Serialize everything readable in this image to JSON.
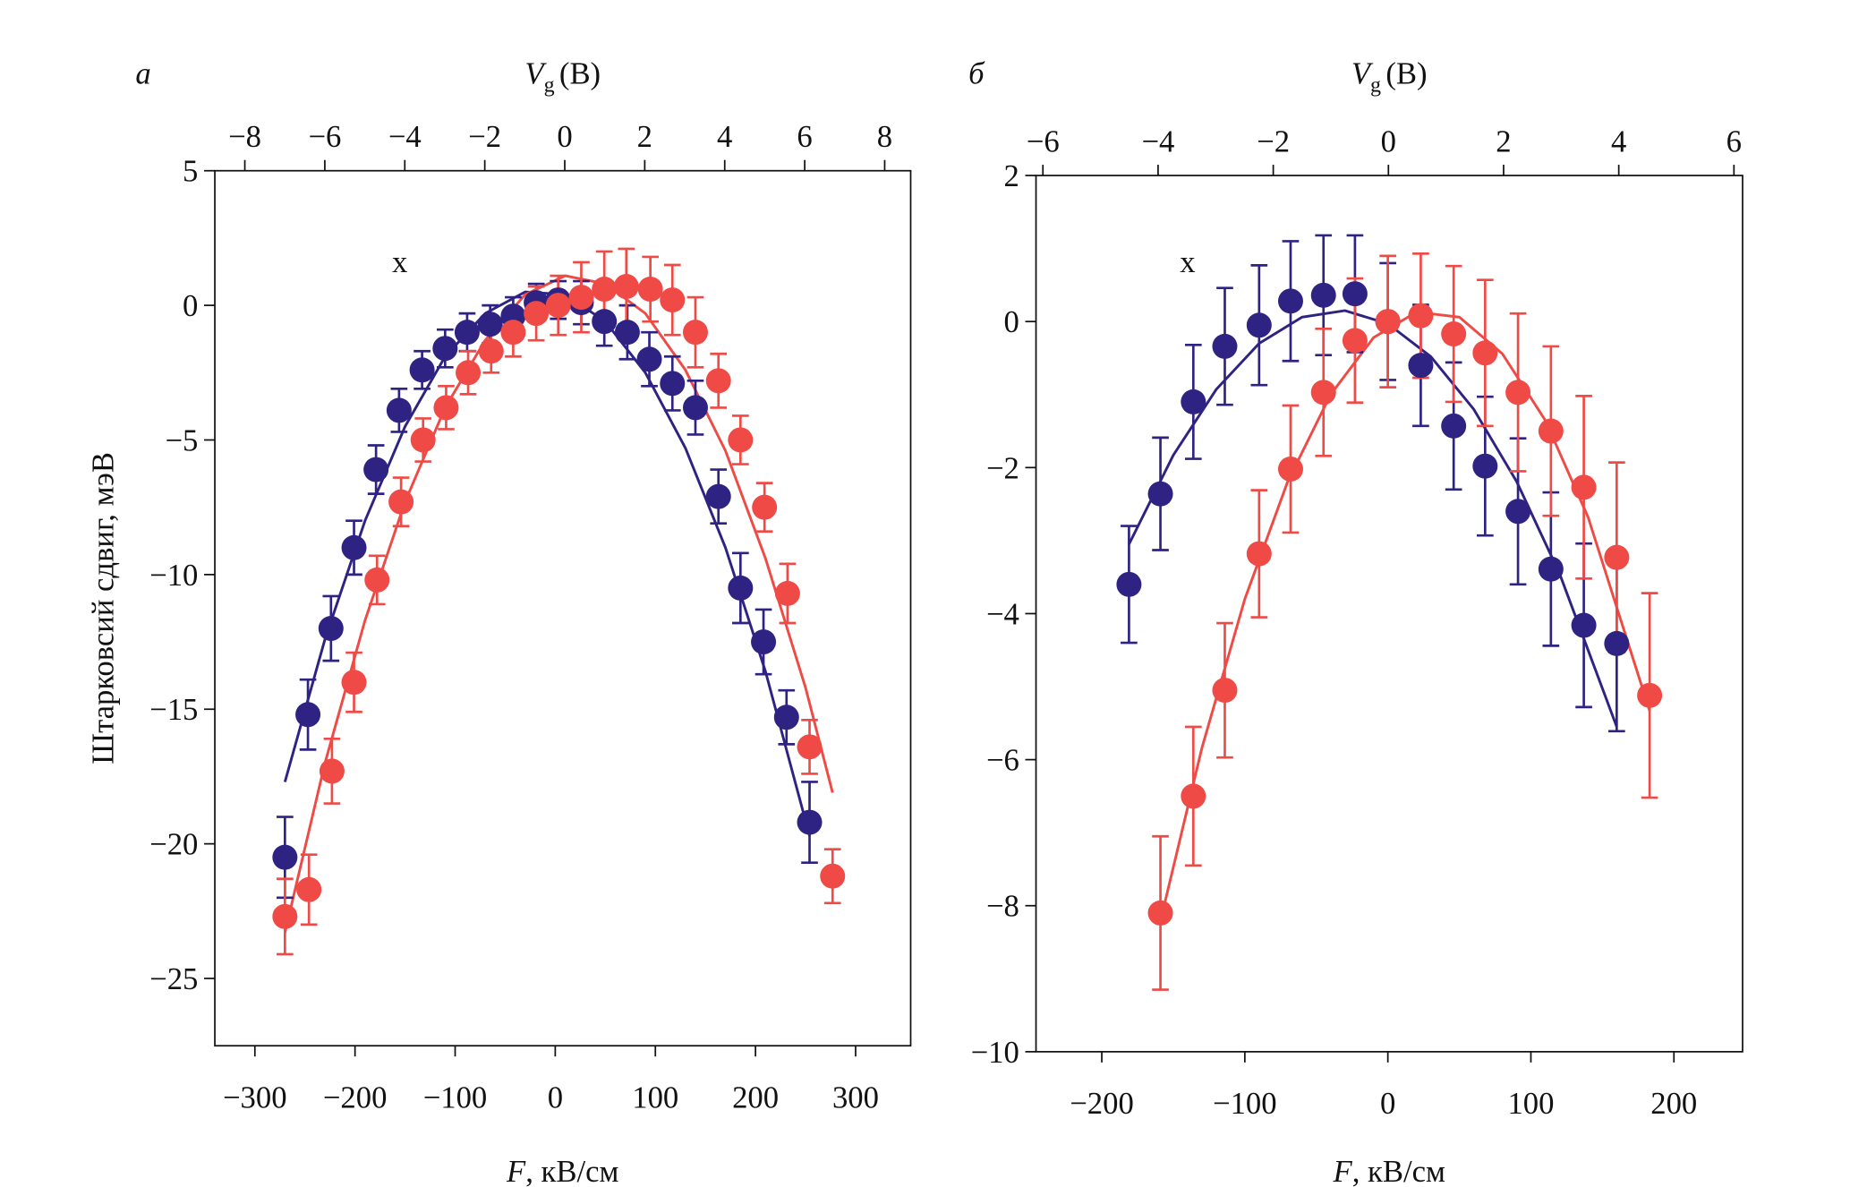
{
  "chart_data": [
    {
      "type": "scatter",
      "panel_label": "а",
      "x2label_symbol": "V",
      "x2label_subscript": "g",
      "x2label_unit": "(В)",
      "xlabel_symbol": "F",
      "xlabel_unit": ", кВ/см",
      "ylabel": "Штарковсий сдвиг, мэВ",
      "annotation": "x",
      "xlim": [
        -340,
        355
      ],
      "xticks": [
        {
          "value": -300,
          "label": "−300"
        },
        {
          "value": -200,
          "label": "−200"
        },
        {
          "value": -100,
          "label": "−100"
        },
        0,
        100,
        200,
        300
      ],
      "x2lim": [
        -8.75,
        8.65
      ],
      "x2ticks": [
        {
          "value": -8,
          "label": "−8"
        },
        {
          "value": -6,
          "label": "−6"
        },
        {
          "value": -4,
          "label": "−4"
        },
        {
          "value": -2,
          "label": "−2"
        },
        0,
        2,
        4,
        6,
        8
      ],
      "ylim": [
        -27.5,
        5
      ],
      "yticks": [
        {
          "value": -25,
          "label": "−25"
        },
        {
          "value": -20,
          "label": "−20"
        },
        {
          "value": -15,
          "label": "−15"
        },
        {
          "value": -10,
          "label": "−10"
        },
        {
          "value": -5,
          "label": "−5"
        },
        0,
        5
      ],
      "series": [
        {
          "type": "line",
          "color": "#2e2383",
          "x": [
            -270,
            -230,
            -190,
            -150,
            -110,
            -70,
            -30,
            10,
            50,
            90,
            130,
            170,
            210,
            254
          ],
          "values": [
            -17.7,
            -12.4,
            -8.0,
            -4.5,
            -1.9,
            -0.3,
            0.5,
            0.4,
            -0.6,
            -2.5,
            -5.3,
            -9.0,
            -13.6,
            -19.7
          ]
        },
        {
          "type": "line",
          "color": "#ef4a45",
          "x": [
            -270,
            -230,
            -190,
            -150,
            -110,
            -70,
            -30,
            10,
            50,
            90,
            130,
            170,
            210,
            250,
            277
          ],
          "values": [
            -23.3,
            -17.0,
            -11.7,
            -7.3,
            -3.8,
            -1.3,
            0.4,
            1.1,
            0.8,
            -0.3,
            -2.4,
            -5.4,
            -9.4,
            -14.2,
            -18.1
          ]
        },
        {
          "type": "errorbar",
          "color": "#2e2383",
          "x": [
            -270,
            -247,
            -224,
            -201,
            -179,
            -156,
            -133,
            -110,
            -88,
            -65,
            -42,
            -19,
            3,
            26,
            49,
            72,
            94,
            117,
            140,
            163,
            185,
            208,
            231,
            254
          ],
          "values": [
            -20.5,
            -15.2,
            -12.0,
            -9.0,
            -6.1,
            -3.9,
            -2.4,
            -1.6,
            -1.0,
            -0.7,
            -0.4,
            0.1,
            0.2,
            0.1,
            -0.6,
            -1.0,
            -2.0,
            -2.9,
            -3.8,
            -7.1,
            -10.5,
            -12.5,
            -15.3,
            -19.2
          ],
          "errors": [
            1.5,
            1.3,
            1.2,
            1.0,
            0.9,
            0.8,
            0.7,
            0.7,
            0.7,
            0.7,
            0.7,
            0.7,
            0.7,
            0.8,
            0.9,
            1.0,
            1.0,
            1.0,
            1.0,
            1.0,
            1.3,
            1.2,
            1.0,
            1.5
          ]
        },
        {
          "type": "errorbar",
          "color": "#ef4a45",
          "x": [
            -270,
            -246,
            -223,
            -201,
            -178,
            -154,
            -132,
            -109,
            -87,
            -64,
            -42,
            -19,
            3,
            26,
            49,
            71,
            95,
            117,
            140,
            163,
            185,
            209,
            232,
            254,
            277
          ],
          "values": [
            -22.7,
            -21.7,
            -17.3,
            -14.0,
            -10.2,
            -7.3,
            -5.0,
            -3.8,
            -2.5,
            -1.7,
            -1.0,
            -0.3,
            0.0,
            0.3,
            0.6,
            0.7,
            0.6,
            0.2,
            -1.0,
            -2.8,
            -5.0,
            -7.5,
            -10.7,
            -16.4,
            -21.2
          ],
          "errors": [
            1.4,
            1.3,
            1.2,
            1.1,
            0.9,
            0.9,
            0.8,
            0.8,
            0.8,
            0.8,
            0.9,
            1.0,
            1.1,
            1.3,
            1.4,
            1.4,
            1.2,
            1.3,
            1.3,
            1.0,
            0.9,
            0.9,
            1.1,
            1.0,
            1.0
          ]
        }
      ]
    },
    {
      "type": "scatter",
      "panel_label": "б",
      "x2label_symbol": "V",
      "x2label_subscript": "g",
      "x2label_unit": "(В)",
      "xlabel_symbol": "F",
      "xlabel_unit": ", кВ/см",
      "annotation": "x",
      "xlim": [
        -246,
        248
      ],
      "xticks": [
        {
          "value": -200,
          "label": "−200"
        },
        {
          "value": -100,
          "label": "−100"
        },
        0,
        100,
        200
      ],
      "x2lim": [
        -6.12,
        6.15
      ],
      "x2ticks": [
        {
          "value": -6,
          "label": "−6"
        },
        {
          "value": -4,
          "label": "−4"
        },
        {
          "value": -2,
          "label": "−2"
        },
        0,
        2,
        4,
        6
      ],
      "ylim": [
        -10,
        2
      ],
      "yticks": [
        {
          "value": -10,
          "label": "−10"
        },
        {
          "value": -8,
          "label": "−8"
        },
        {
          "value": -6,
          "label": "−6"
        },
        {
          "value": -4,
          "label": "−4"
        },
        {
          "value": -2,
          "label": "−2"
        },
        0,
        2
      ],
      "series": [
        {
          "type": "line",
          "color": "#2e2383",
          "x": [
            -181,
            -150,
            -120,
            -90,
            -60,
            -30,
            0,
            30,
            60,
            90,
            120,
            160
          ],
          "values": [
            -3.05,
            -1.83,
            -0.93,
            -0.3,
            0.06,
            0.15,
            -0.03,
            -0.48,
            -1.2,
            -2.19,
            -3.45,
            -5.55
          ]
        },
        {
          "type": "line",
          "color": "#ef4a45",
          "x": [
            -159,
            -130,
            -100,
            -70,
            -40,
            -10,
            20,
            50,
            80,
            110,
            140,
            183
          ],
          "values": [
            -8.21,
            -5.84,
            -3.8,
            -2.19,
            -1.0,
            -0.22,
            0.13,
            0.06,
            -0.44,
            -1.35,
            -2.68,
            -5.33
          ]
        },
        {
          "type": "errorbar",
          "color": "#2e2383",
          "x": [
            -181,
            -159,
            -136,
            -114,
            -90,
            -68,
            -45,
            -23,
            0,
            23,
            46,
            68,
            91,
            114,
            137,
            160
          ],
          "values": [
            -3.6,
            -2.36,
            -1.1,
            -0.34,
            -0.05,
            0.28,
            0.36,
            0.38,
            0.0,
            -0.6,
            -1.43,
            -1.98,
            -2.6,
            -3.39,
            -4.16,
            -4.41
          ],
          "errors": [
            0.8,
            0.77,
            0.78,
            0.8,
            0.82,
            0.82,
            0.82,
            0.8,
            0.8,
            0.83,
            0.87,
            0.95,
            1.0,
            1.05,
            1.12,
            1.2
          ]
        },
        {
          "type": "errorbar",
          "color": "#ef4a45",
          "x": [
            -159,
            -136,
            -114,
            -90,
            -68,
            -45,
            -23,
            0,
            23,
            46,
            68,
            91,
            114,
            137,
            160,
            183
          ],
          "values": [
            -8.1,
            -6.5,
            -5.05,
            -3.18,
            -2.02,
            -0.97,
            -0.26,
            0.0,
            0.08,
            -0.17,
            -0.43,
            -0.97,
            -1.5,
            -2.27,
            -3.23,
            -5.12
          ],
          "errors": [
            1.05,
            0.95,
            0.92,
            0.87,
            0.87,
            0.87,
            0.85,
            0.9,
            0.85,
            0.93,
            1.0,
            1.08,
            1.16,
            1.25,
            1.3,
            1.4
          ]
        }
      ]
    }
  ]
}
